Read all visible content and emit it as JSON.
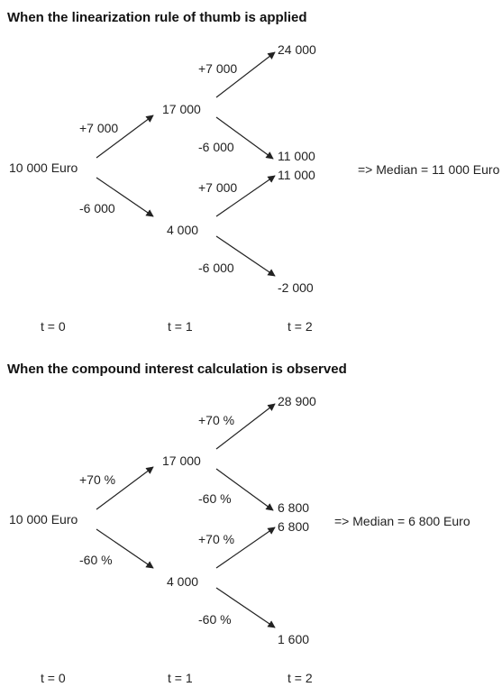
{
  "trees": [
    {
      "heading": "When the linearization rule of thumb is applied",
      "nodes": {
        "root": "10 000 Euro",
        "up": "17 000",
        "down": "4 000",
        "uu": "24 000",
        "ud": "11 000",
        "du": "11 000",
        "dd": "-2 000"
      },
      "edge_labels": {
        "root_up": "+7 000",
        "root_down": "-6 000",
        "up_up": "+7 000",
        "up_down": "-6 000",
        "down_up": "+7 000",
        "down_down": "-6 000"
      },
      "median": "=> Median = 11 000 Euro",
      "time_labels": [
        "t = 0",
        "t = 1",
        "t = 2"
      ]
    },
    {
      "heading": "When the compound interest calculation is observed",
      "nodes": {
        "root": "10 000 Euro",
        "up": "17 000",
        "down": "4 000",
        "uu": "28 900",
        "ud": "6 800",
        "du": "6 800",
        "dd": "1 600"
      },
      "edge_labels": {
        "root_up": "+70 %",
        "root_down": "-60 %",
        "up_up": "+70 %",
        "up_down": "-60 %",
        "down_up": "+70 %",
        "down_down": "-60 %"
      },
      "median": "=> Median = 6 800 Euro",
      "time_labels": [
        "t = 0",
        "t = 1",
        "t = 2"
      ]
    }
  ]
}
